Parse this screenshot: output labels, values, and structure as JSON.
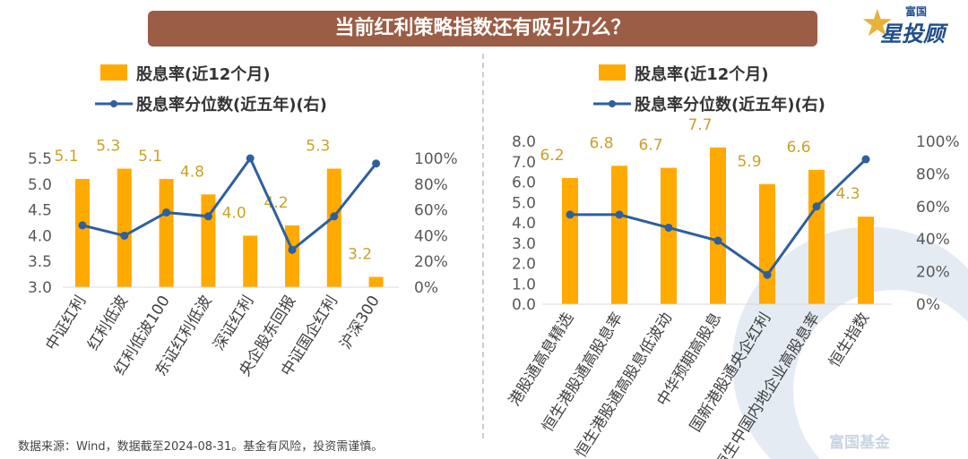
{
  "title": "当前红利策略指数还有吸引力么？",
  "logo": {
    "small": "富国",
    "big": "星投顾",
    "watermark": "富国基金"
  },
  "footer": "数据来源：Wind，数据截至2024-08-31。基金有风险，投资需谨慎。",
  "colors": {
    "bar": "#ffaa00",
    "line": "#2e5f9e",
    "title_bg": "#9b5d45",
    "data_label": "#c9a227"
  },
  "chart_data": [
    {
      "type": "bar+line",
      "legend": [
        "股息率(近12个月)",
        "股息率分位数(近五年)(右)"
      ],
      "legend_placement": "top",
      "categories": [
        "中证红利",
        "红利低波",
        "红利低波100",
        "东证红利低波",
        "深证红利",
        "央企股东回报",
        "中证国企红利",
        "沪深300"
      ],
      "series": [
        {
          "name": "股息率(近12个月)",
          "type": "bar",
          "axis": "left",
          "values": [
            5.1,
            5.3,
            5.1,
            4.8,
            4.0,
            4.2,
            5.3,
            3.2
          ],
          "labels": [
            "5.1",
            "5.3",
            "5.1",
            "4.8",
            "4.0",
            "4.2",
            "5.3",
            "3.2"
          ]
        },
        {
          "name": "股息率分位数(近五年)(右)",
          "type": "line",
          "axis": "right",
          "values": [
            48,
            40,
            58,
            55,
            100,
            29,
            55,
            96
          ]
        }
      ],
      "ylim": [
        3.0,
        5.5
      ],
      "yticks": [
        "3.0",
        "3.5",
        "4.0",
        "4.5",
        "5.0",
        "5.5"
      ],
      "y2lim": [
        0,
        100
      ],
      "y2ticks": [
        "0%",
        "20%",
        "40%",
        "60%",
        "80%",
        "100%"
      ],
      "grid": false
    },
    {
      "type": "bar+line",
      "legend": [
        "股息率(近12个月)",
        "股息率分位数(近五年)(右)"
      ],
      "legend_placement": "top",
      "categories": [
        "港股通高息精选",
        "恒生港股通高股息率",
        "恒生港股通高股息低波动",
        "中华预期高股息",
        "国新港股通央企红利",
        "恒生中国内地企业高股息率",
        "恒生指数"
      ],
      "series": [
        {
          "name": "股息率(近12个月)",
          "type": "bar",
          "axis": "left",
          "values": [
            6.2,
            6.8,
            6.7,
            7.7,
            5.9,
            6.6,
            4.3
          ],
          "labels": [
            "6.2",
            "6.8",
            "6.7",
            "7.7",
            "5.9",
            "6.6",
            "4.3"
          ]
        },
        {
          "name": "股息率分位数(近五年)(右)",
          "type": "line",
          "axis": "right",
          "values": [
            55,
            55,
            47,
            39,
            18,
            60,
            89
          ]
        }
      ],
      "ylim": [
        0,
        8.0
      ],
      "yticks": [
        "0.0",
        "1.0",
        "2.0",
        "3.0",
        "4.0",
        "5.0",
        "6.0",
        "7.0",
        "8.0"
      ],
      "y2lim": [
        0,
        100
      ],
      "y2ticks": [
        "0%",
        "20%",
        "40%",
        "60%",
        "80%",
        "100%"
      ],
      "grid": false
    }
  ]
}
